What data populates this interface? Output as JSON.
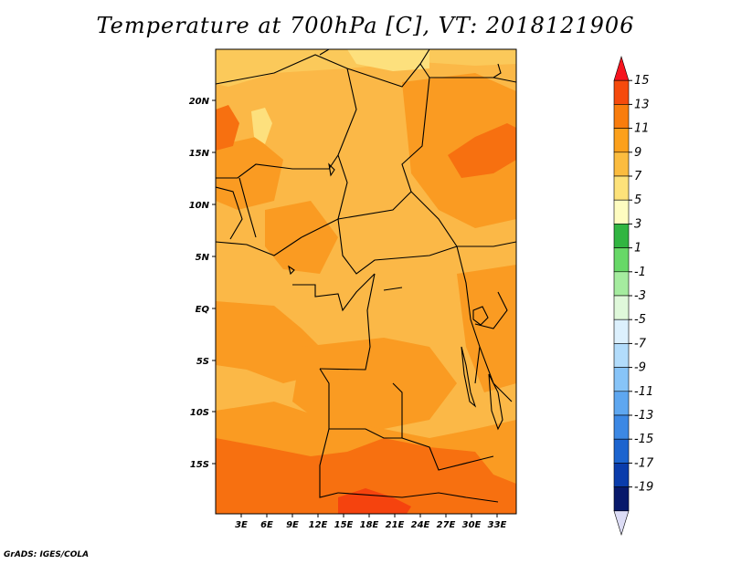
{
  "title": "Temperature at 700hPa [C], VT: 2018121906",
  "credit": "GrADS: IGES/COLA",
  "lat_labels": [
    "20N",
    "15N",
    "10N",
    "5N",
    "EQ",
    "5S",
    "10S",
    "15S"
  ],
  "lon_labels": [
    "3E",
    "6E",
    "9E",
    "12E",
    "15E",
    "18E",
    "21E",
    "24E",
    "27E",
    "30E",
    "33E"
  ],
  "colorbar": {
    "labels": [
      "15",
      "13",
      "11",
      "9",
      "7",
      "5",
      "3",
      "1",
      "-1",
      "-3",
      "-5",
      "-7",
      "-9",
      "-11",
      "-13",
      "-15",
      "-17",
      "-19"
    ],
    "colors": [
      "#f6141e",
      "#f54a0c",
      "#f97d0d",
      "#fca01b",
      "#fbbc3f",
      "#fde27a",
      "#fefcc0",
      "#31b541",
      "#67d867",
      "#a5ec9f",
      "#dff8da",
      "#dcf0fd",
      "#b2dcfb",
      "#87c4f8",
      "#5ea7f0",
      "#3c88e4",
      "#1c64cf",
      "#0a3cab",
      "#08196b",
      "#dcdcf5"
    ]
  },
  "colors": {
    "field_base": "#fbb847",
    "warm_patch": "#fa9b22",
    "hot_patch": "#f77010",
    "hottest": "#f5430e",
    "cool_patch": "#fde07d",
    "border": "#000000"
  }
}
